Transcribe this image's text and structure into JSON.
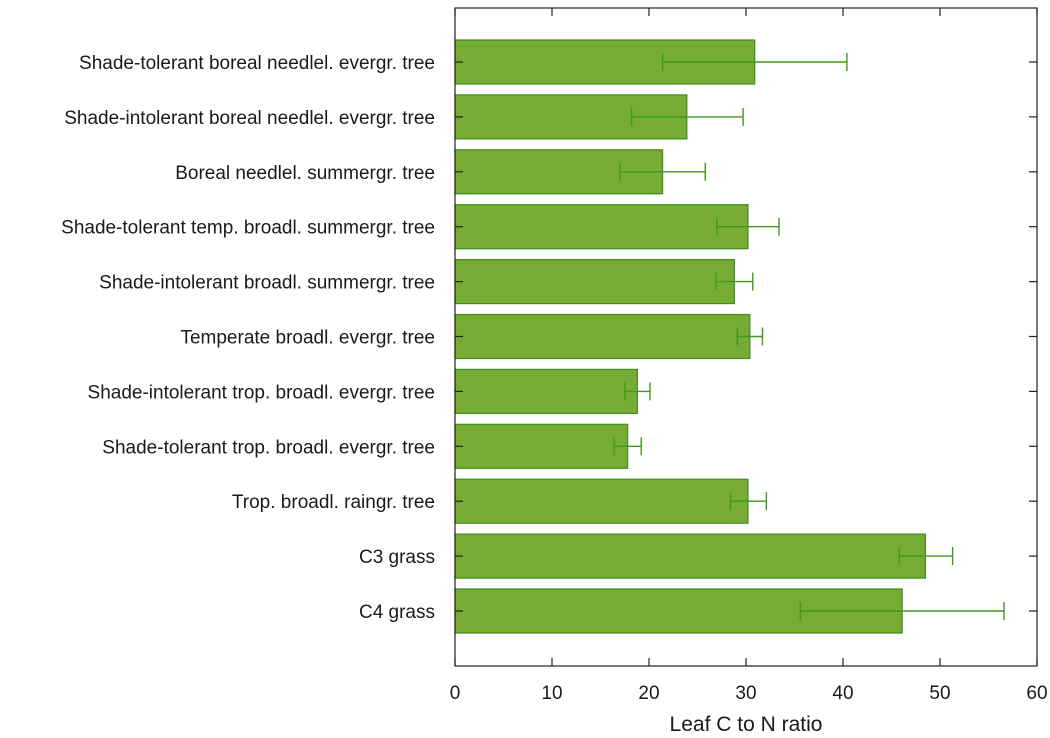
{
  "chart_data": {
    "type": "bar",
    "orientation": "horizontal",
    "categories": [
      "Shade-tolerant boreal needlel. evergr. tree",
      "Shade-intolerant boreal needlel. evergr. tree",
      "Boreal needlel. summergr. tree",
      "Shade-tolerant temp. broadl. summergr. tree",
      "Shade-intolerant broadl. summergr. tree",
      "Temperate broadl. evergr. tree",
      "Shade-intolerant trop. broadl. evergr. tree",
      "Shade-tolerant trop. broadl. evergr. tree",
      "Trop. broadl. raingr. tree",
      "C3 grass",
      "C4 grass"
    ],
    "values": [
      30.9,
      23.9,
      21.4,
      30.2,
      28.8,
      30.4,
      18.8,
      17.8,
      30.2,
      48.5,
      46.1
    ],
    "error_low": [
      21.4,
      18.2,
      17.0,
      27.0,
      26.9,
      29.1,
      17.5,
      16.4,
      28.4,
      45.8,
      35.6
    ],
    "error_high": [
      40.4,
      29.7,
      25.8,
      33.4,
      30.7,
      31.7,
      20.1,
      19.2,
      32.1,
      51.3,
      56.6
    ],
    "xlabel": "Leaf C to N ratio",
    "ylabel": "",
    "title": "",
    "xlim": [
      0,
      60
    ],
    "xticks": [
      "0",
      "10",
      "20",
      "30",
      "40",
      "50",
      "60"
    ],
    "grid": false,
    "colors": {
      "bar_fill": "#76ab34",
      "bar_stroke": "#3f8f18",
      "error_bar": "#3f9a1d",
      "axis": "#222222"
    }
  }
}
